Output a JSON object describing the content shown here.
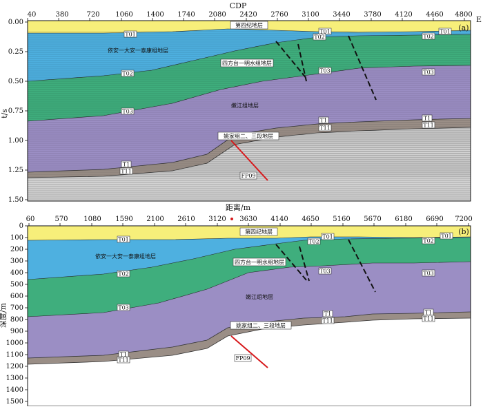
{
  "panel_a": {
    "tag": "(a)",
    "top_axis_title": "CDP",
    "top_axis_end": "E",
    "top_ticks": [
      "40",
      "380",
      "720",
      "1060",
      "1400",
      "1740",
      "2080",
      "2420",
      "2760",
      "3100",
      "3440",
      "3780",
      "4120",
      "4460",
      "4800"
    ],
    "y_ticks": [
      "0.00",
      "0.25",
      "0.50",
      "0.75",
      "1.00",
      "1.25",
      "1.50"
    ],
    "y_label": "t/s",
    "bottom_axis_title": "距离/m",
    "labels": {
      "quaternary": "第四纪地层",
      "yian_taikang": "依安一大安一泰康组地层",
      "sifangtai_mingshui": "四方台一明水组地层",
      "nenjiang": "嫩江组地层",
      "yaojia": "姚家组二、三段地层",
      "fault": "FP09",
      "t01_a": "T01",
      "t01_b": "T01",
      "t01_c": "T01",
      "t02_a": "T02",
      "t02_b": "T02",
      "t02_c": "T02",
      "t03_a": "T03",
      "t03_b": "T03",
      "t03_c": "T03",
      "t1_a": "T1",
      "t1_b": "T1",
      "t1_c": "T1",
      "t11_a": "T11",
      "t11_b": "T11",
      "t11_c": "T11"
    }
  },
  "panel_b": {
    "tag": "(b)",
    "top_ticks": [
      "60",
      "570",
      "1080",
      "1590",
      "2100",
      "2610",
      "3120",
      "3630",
      "4140",
      "4650",
      "5160",
      "5670",
      "6180",
      "6690",
      "7200"
    ],
    "y_ticks": [
      "0",
      "100",
      "200",
      "300",
      "400",
      "500",
      "600",
      "700",
      "800",
      "900",
      "1000",
      "1100",
      "1200",
      "1300",
      "1400",
      "1500"
    ],
    "y_label": "深度/m",
    "labels": {
      "quaternary": "第四纪地层",
      "yian_taikang": "依安一大安一泰康组地层",
      "sifangtai_mingshui": "四方台一明水组地层",
      "nenjiang": "嫩江组地层",
      "yaojia": "姚家组二、三段地层",
      "fault": "FP09",
      "t01_a": "T01",
      "t01_b": "T01",
      "t01_c": "T01",
      "t02_a": "T02",
      "t02_b": "T02",
      "t02_c": "T02",
      "t03_a": "T03",
      "t03_b": "T03",
      "t03_c": "T03",
      "t1_a": "T1",
      "t1_b": "T1",
      "t1_c": "T1",
      "t11_a": "T11",
      "t11_b": "T11",
      "t11_c": "T11"
    }
  },
  "colors": {
    "quaternary": "#f7ef7a",
    "yian_taikang": "#4eb0e0",
    "sifangtai_mingshui": "#3fae7d",
    "nenjiang": "#9b8ec4",
    "yaojia_band": "#9a8e86",
    "basement": "#cfcfcf",
    "fault_red": "#d7191c",
    "fault_black": "#111111"
  }
}
